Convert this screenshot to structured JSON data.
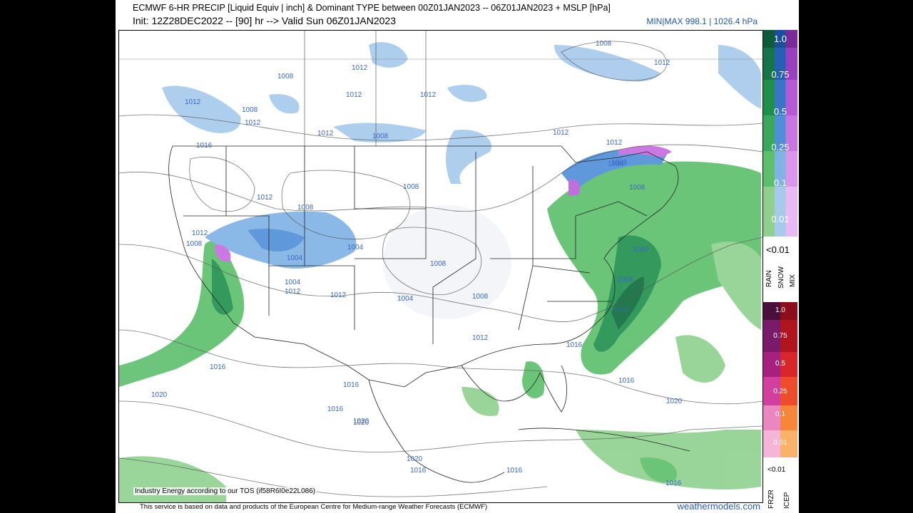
{
  "header": {
    "title": "ECMWF 6-HR PRECIP [Liquid Equiv | inch] & Dominant TYPE between 00Z01JAN2023 -- 06Z01JAN2023 + MSLP [hPa]",
    "init": "Init: 12Z28DEC2022 -- [90] hr --> Valid Sun 06Z01JAN2023",
    "minmax": "MIN|MAX 998.1 | 1026.4 hPa"
  },
  "map": {
    "isobar_labels": [
      "1012",
      "1008",
      "1012",
      "1012",
      "1008",
      "1012",
      "1012",
      "1008",
      "1012",
      "1012",
      "1016",
      "1012",
      "1008",
      "1012",
      "1008",
      "1008",
      "1008",
      "1004",
      "1004",
      "1008",
      "1012",
      "1008",
      "1004",
      "1008",
      "1012",
      "1012",
      "1012",
      "1008",
      "1004",
      "1000",
      "1004",
      "1008",
      "1012",
      "1016",
      "1016",
      "1020",
      "1016",
      "1012",
      "1016",
      "1016",
      "1020",
      "1020",
      "1016",
      "1016",
      "1020",
      "1020",
      "1016"
    ],
    "tos_note": "Industry Energy according to our TOS (if58R6I0e22L086)"
  },
  "colorbar": {
    "upper_labels": [
      "1.0",
      "0.75",
      "0.5",
      "0.25",
      "0.1",
      "0.01"
    ],
    "upper_lt": "<0.01",
    "type_labels": [
      "RAIN",
      "SNOW",
      "MIX"
    ],
    "lower_labels": [
      "1.0",
      "0.75",
      "0.5",
      "0.25",
      "0.1",
      "0.01"
    ],
    "lower_lt": "<0.01",
    "lower_type_labels": [
      "FRZR",
      "ICEP"
    ]
  },
  "footer": {
    "text": "This service is based on data and products of the European Centre for Medium-range Weather Forecasts (ECMWF)",
    "brand": "weathermodels.com"
  }
}
